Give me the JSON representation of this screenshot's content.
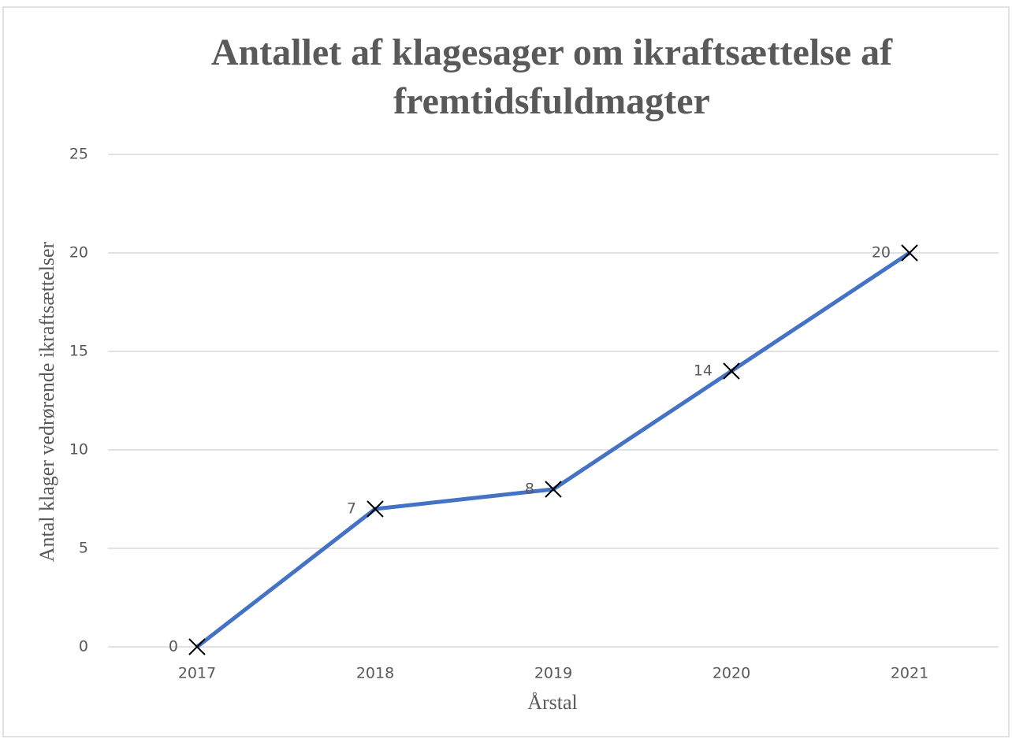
{
  "chart_data": {
    "type": "line",
    "title": "Antallet af klagesager om ikraftsættelse af fremtidsfuldmagter",
    "x_label": "Årstal",
    "y_label": "Antal klager vedrørende ikraftsættelser",
    "categories": [
      "2017",
      "2018",
      "2019",
      "2020",
      "2021"
    ],
    "series": [
      {
        "name": "Antal klager",
        "color": "#4472c4",
        "values": [
          0,
          7,
          8,
          14,
          20
        ]
      }
    ],
    "ylim": [
      0,
      25
    ],
    "yticks": [
      0,
      5,
      10,
      15,
      20,
      25
    ],
    "grid": true
  }
}
